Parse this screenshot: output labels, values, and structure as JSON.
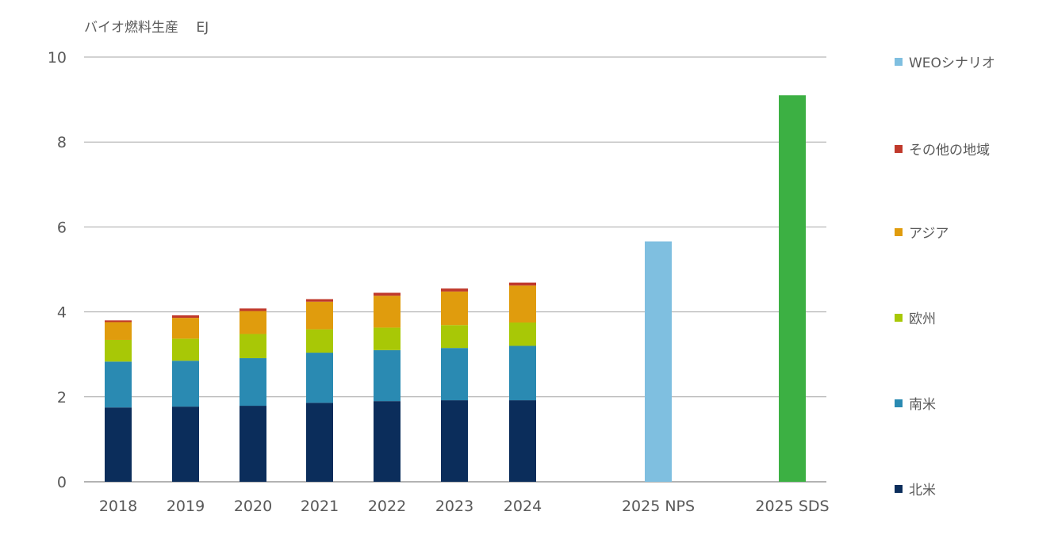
{
  "chart_data": {
    "type": "bar",
    "stacked": true,
    "ylabel": "バイオ燃料生産　 EJ",
    "ylim": [
      0,
      10
    ],
    "yticks": [
      "0",
      "2",
      "4",
      "6",
      "8",
      "10"
    ],
    "categories": [
      "2018",
      "2019",
      "2020",
      "2021",
      "2022",
      "2023",
      "2024",
      "2025 NPS",
      "2025 SDS"
    ],
    "series": [
      {
        "name": "北米",
        "color": "#0b2d5b",
        "values": [
          1.75,
          1.77,
          1.79,
          1.86,
          1.9,
          1.92,
          1.92,
          0,
          0
        ]
      },
      {
        "name": "南米",
        "color": "#2a8ab2",
        "values": [
          1.08,
          1.08,
          1.12,
          1.18,
          1.2,
          1.23,
          1.28,
          0,
          0
        ]
      },
      {
        "name": "欧州",
        "color": "#a8c806",
        "values": [
          0.51,
          0.52,
          0.57,
          0.55,
          0.53,
          0.54,
          0.55,
          0,
          0
        ]
      },
      {
        "name": "アジア",
        "color": "#e09c0d",
        "values": [
          0.42,
          0.49,
          0.54,
          0.65,
          0.75,
          0.79,
          0.87,
          0,
          0
        ]
      },
      {
        "name": "その他の地域",
        "color": "#c0392b",
        "values": [
          0.04,
          0.06,
          0.06,
          0.06,
          0.07,
          0.07,
          0.07,
          0,
          0
        ]
      },
      {
        "name": "WEOシナリオ",
        "color": "#7fbfe0",
        "values": [
          0,
          0,
          0,
          0,
          0,
          0,
          0,
          5.66,
          9.1
        ]
      }
    ],
    "special_colors": {
      "2025 SDS": "#3cb043"
    },
    "gridlines": true,
    "legend_position": "right"
  },
  "legend_order": [
    "WEOシナリオ",
    "その他の地域",
    "アジア",
    "欧州",
    "南米",
    "北米"
  ]
}
